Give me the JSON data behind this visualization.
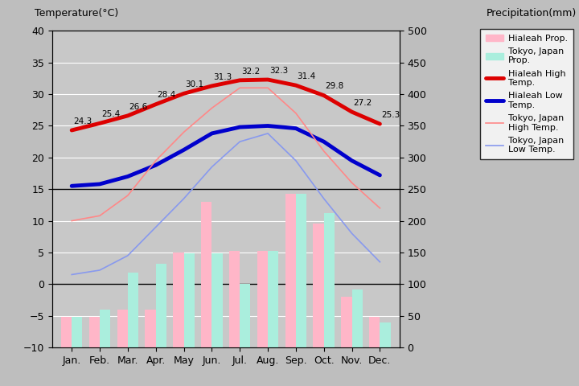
{
  "months": [
    "Jan.",
    "Feb.",
    "Mar.",
    "Apr.",
    "May",
    "Jun.",
    "Jul.",
    "Aug.",
    "Sep.",
    "Oct.",
    "Nov.",
    "Dec."
  ],
  "hialeah_high": [
    24.3,
    25.4,
    26.6,
    28.4,
    30.1,
    31.3,
    32.2,
    32.3,
    31.4,
    29.8,
    27.2,
    25.3
  ],
  "hialeah_low": [
    15.5,
    15.8,
    17.0,
    18.8,
    21.2,
    23.8,
    24.8,
    25.0,
    24.6,
    22.5,
    19.5,
    17.2
  ],
  "tokyo_high": [
    10.0,
    10.8,
    14.0,
    19.5,
    24.0,
    27.8,
    31.0,
    31.0,
    27.0,
    21.0,
    16.0,
    12.0
  ],
  "tokyo_low": [
    1.5,
    2.2,
    4.5,
    9.0,
    13.5,
    18.5,
    22.5,
    23.8,
    19.5,
    13.5,
    8.0,
    3.5
  ],
  "hialeah_precip_mm": [
    48,
    48,
    60,
    60,
    150,
    230,
    152,
    152,
    242,
    196,
    80,
    48
  ],
  "tokyo_precip_mm": [
    48,
    60,
    118,
    132,
    148,
    148,
    100,
    152,
    242,
    212,
    92,
    40
  ],
  "hialeah_high_color": "#DD0000",
  "hialeah_low_color": "#0000CC",
  "tokyo_high_color": "#FF8888",
  "tokyo_low_color": "#8899EE",
  "hialeah_precip_color": "#FFB6C8",
  "tokyo_precip_color": "#AAEEDD",
  "bg_color": "#BEBEBE",
  "plot_area_color": "#C8C8C8",
  "ylim_temp": [
    -10,
    40
  ],
  "ylim_precip": [
    0,
    500
  ],
  "title_left": "Temperature(°C)",
  "title_right": "Precipitation(mm)",
  "legend_labels": [
    "Hialeah Prop.",
    "Tokyo, Japan\nProp.",
    "Hialeah High\nTemp.",
    "Hialeah Low\nTemp.",
    "Tokyo, Japan\nHigh Temp.",
    "Tokyo, Japan\nLow Temp."
  ],
  "hialeah_high_lw": 3.5,
  "hialeah_low_lw": 3.5,
  "tokyo_high_lw": 1.2,
  "tokyo_low_lw": 1.2,
  "annot_fontsize": 7.5,
  "tick_fontsize": 9,
  "label_fontsize": 9,
  "legend_fontsize": 8
}
